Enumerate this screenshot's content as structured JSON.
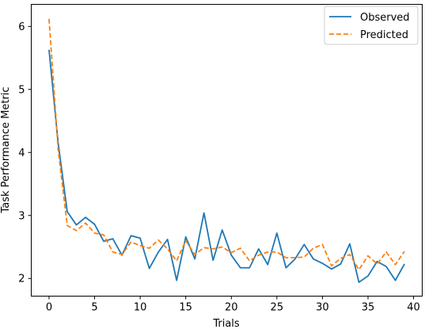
{
  "chart_data": {
    "type": "line",
    "xlabel": "Trials",
    "ylabel": "Task Performance Metric",
    "xlim": [
      -1.95,
      40.95
    ],
    "ylim": [
      1.72,
      6.35
    ],
    "xticks": [
      0,
      5,
      10,
      15,
      20,
      25,
      30,
      35,
      40
    ],
    "yticks": [
      2,
      3,
      4,
      5,
      6
    ],
    "grid": false,
    "legend": "top-right",
    "x": [
      0,
      1,
      2,
      3,
      4,
      5,
      6,
      7,
      8,
      9,
      10,
      11,
      12,
      13,
      14,
      15,
      16,
      17,
      18,
      19,
      20,
      21,
      22,
      23,
      24,
      25,
      26,
      27,
      28,
      29,
      30,
      31,
      32,
      33,
      34,
      35,
      36,
      37,
      38,
      39
    ],
    "series": [
      {
        "name": "Observed",
        "color": "#1f77b4",
        "style": "solid",
        "values": [
          5.63,
          4.15,
          3.06,
          2.85,
          2.97,
          2.86,
          2.59,
          2.63,
          2.37,
          2.68,
          2.64,
          2.16,
          2.42,
          2.62,
          1.97,
          2.66,
          2.31,
          3.04,
          2.29,
          2.77,
          2.37,
          2.17,
          2.17,
          2.47,
          2.22,
          2.72,
          2.17,
          2.31,
          2.54,
          2.31,
          2.24,
          2.15,
          2.23,
          2.55,
          1.94,
          2.04,
          2.27,
          2.19,
          1.97,
          2.23
        ]
      },
      {
        "name": "Predicted",
        "color": "#ff7f0e",
        "style": "dashed",
        "values": [
          6.12,
          4.05,
          2.84,
          2.76,
          2.88,
          2.72,
          2.69,
          2.42,
          2.38,
          2.58,
          2.52,
          2.48,
          2.61,
          2.47,
          2.28,
          2.6,
          2.38,
          2.49,
          2.47,
          2.5,
          2.41,
          2.48,
          2.28,
          2.37,
          2.42,
          2.42,
          2.33,
          2.33,
          2.34,
          2.48,
          2.54,
          2.2,
          2.32,
          2.38,
          2.14,
          2.36,
          2.23,
          2.42,
          2.22,
          2.43
        ]
      }
    ]
  }
}
